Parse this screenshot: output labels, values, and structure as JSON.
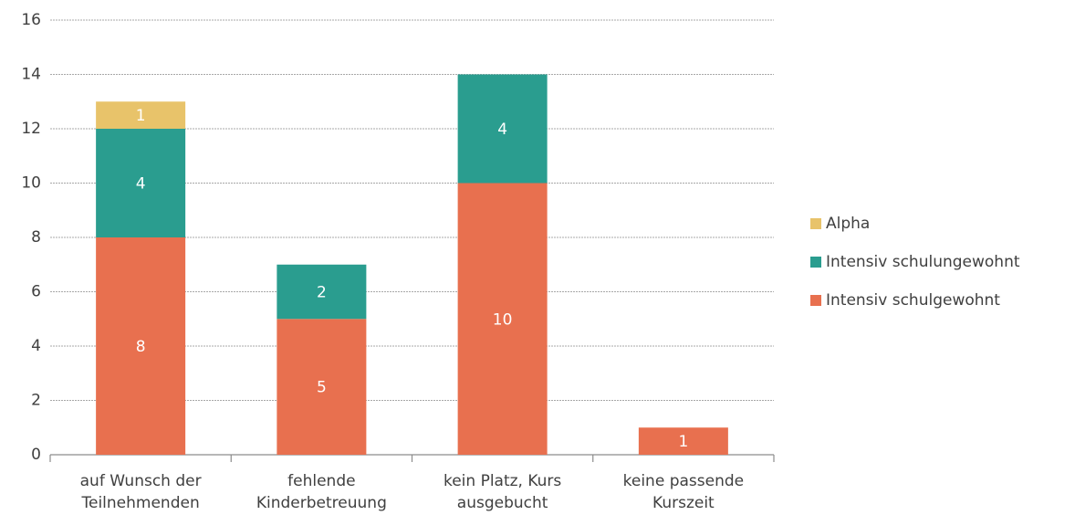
{
  "chart_data": {
    "type": "stacked_bar",
    "categories": [
      "auf Wunsch der\nTeilnehmenden",
      "fehlende\nKinderbetreuung",
      "kein Platz, Kurs\nausgebucht",
      "keine passende\nKurszeit"
    ],
    "series": [
      {
        "name": "Intensiv schulgewohnt",
        "color": "#e8704f",
        "values": [
          8,
          5,
          10,
          1
        ]
      },
      {
        "name": "Intensiv schulungewohnt",
        "color": "#2a9d8f",
        "values": [
          4,
          2,
          4,
          null
        ]
      },
      {
        "name": "Alpha",
        "color": "#e8c36a",
        "values": [
          1,
          null,
          null,
          null
        ]
      }
    ],
    "ylim": [
      0,
      16
    ],
    "yticks": [
      0,
      2,
      4,
      6,
      8,
      10,
      12,
      14,
      16
    ],
    "grid": true,
    "legend": "right"
  }
}
